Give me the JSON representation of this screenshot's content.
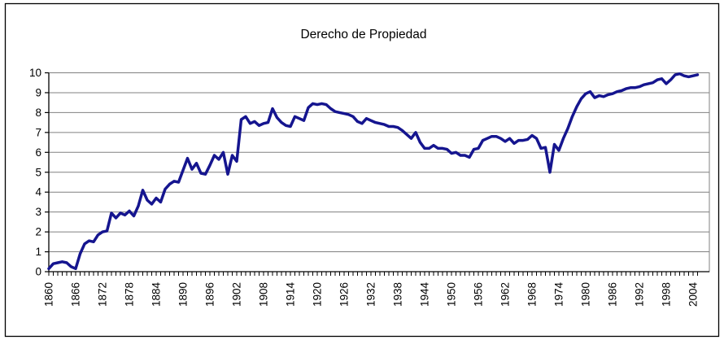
{
  "chart_data": {
    "type": "line",
    "title": "Derecho de Propiedad",
    "legend": "none",
    "grid": true,
    "line_color": "#15158f",
    "x_axis": {
      "start_year": 1860,
      "end_year": 2005,
      "tick_label_step": 6,
      "tick_labels": [
        "1860",
        "1866",
        "1872",
        "1878",
        "1884",
        "1890",
        "1896",
        "1902",
        "1908",
        "1914",
        "1920",
        "1926",
        "1932",
        "1938",
        "1944",
        "1950",
        "1956",
        "1962",
        "1968",
        "1974",
        "1980",
        "1986",
        "1992",
        "1998",
        "2004"
      ]
    },
    "y_axis": {
      "min": 0,
      "max": 10,
      "tick_step": 1,
      "tick_labels": [
        "0",
        "1",
        "2",
        "3",
        "4",
        "5",
        "6",
        "7",
        "8",
        "9",
        "10"
      ]
    },
    "series": [
      {
        "name": "Derecho de Propiedad",
        "x_start": 1860,
        "x_step": 1,
        "values": [
          0.15,
          0.4,
          0.45,
          0.5,
          0.45,
          0.25,
          0.15,
          0.9,
          1.4,
          1.55,
          1.5,
          1.85,
          2.0,
          2.05,
          2.95,
          2.7,
          2.95,
          2.85,
          3.05,
          2.8,
          3.3,
          4.1,
          3.6,
          3.4,
          3.7,
          3.5,
          4.15,
          4.4,
          4.55,
          4.5,
          5.1,
          5.7,
          5.15,
          5.45,
          4.95,
          4.9,
          5.35,
          5.85,
          5.65,
          6.0,
          4.9,
          5.85,
          5.55,
          7.65,
          7.8,
          7.45,
          7.55,
          7.35,
          7.45,
          7.5,
          8.2,
          7.75,
          7.5,
          7.35,
          7.3,
          7.8,
          7.7,
          7.6,
          8.25,
          8.45,
          8.4,
          8.45,
          8.4,
          8.2,
          8.05,
          8.0,
          7.95,
          7.9,
          7.8,
          7.55,
          7.45,
          7.7,
          7.6,
          7.5,
          7.45,
          7.4,
          7.3,
          7.3,
          7.25,
          7.1,
          6.9,
          6.7,
          7.0,
          6.5,
          6.2,
          6.2,
          6.35,
          6.2,
          6.2,
          6.15,
          5.95,
          6.0,
          5.85,
          5.85,
          5.75,
          6.15,
          6.2,
          6.6,
          6.7,
          6.8,
          6.8,
          6.7,
          6.55,
          6.7,
          6.45,
          6.6,
          6.6,
          6.65,
          6.85,
          6.7,
          6.2,
          6.25,
          5.0,
          6.4,
          6.1,
          6.7,
          7.2,
          7.8,
          8.3,
          8.7,
          8.95,
          9.05,
          8.75,
          8.85,
          8.8,
          8.9,
          8.95,
          9.05,
          9.1,
          9.2,
          9.25,
          9.25,
          9.3,
          9.4,
          9.45,
          9.5,
          9.65,
          9.7,
          9.45,
          9.65,
          9.9,
          9.95,
          9.85,
          9.8,
          9.85,
          9.9
        ]
      }
    ],
    "colors": {
      "line": "#15158f",
      "grid": "#808080",
      "axis": "#000000",
      "background": "#ffffff"
    }
  }
}
